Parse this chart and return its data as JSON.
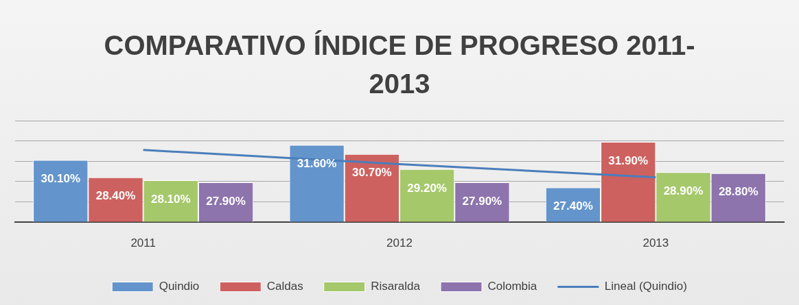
{
  "chart_data": {
    "type": "bar",
    "title": "COMPARATIVO ÍNDICE DE PROGRESO 2011-2013",
    "categories": [
      "2011",
      "2012",
      "2013"
    ],
    "series": [
      {
        "name": "Quindio",
        "color": "#6494cc",
        "values": [
          30.1,
          31.6,
          27.4
        ],
        "value_labels": [
          "30.10%",
          "31.60%",
          "27.40%"
        ]
      },
      {
        "name": "Caldas",
        "color": "#cd615f",
        "values": [
          28.4,
          30.7,
          31.9
        ],
        "value_labels": [
          "28.40%",
          "30.70%",
          "31.90%"
        ]
      },
      {
        "name": "Risaralda",
        "color": "#a5c86b",
        "values": [
          28.1,
          29.2,
          28.9
        ],
        "value_labels": [
          "28.10%",
          "29.20%",
          "28.90%"
        ]
      },
      {
        "name": "Colombia",
        "color": "#8d74ad",
        "values": [
          27.9,
          27.9,
          28.8
        ],
        "value_labels": [
          "27.90%",
          "27.90%",
          "28.80%"
        ]
      },
      {
        "name": "Lineal (Quindio)",
        "type": "line",
        "color": "#4a7ebb",
        "values": [
          31.1,
          29.7,
          28.4
        ]
      }
    ],
    "ylim": [
      24,
      34
    ],
    "yticks": [
      {
        "value": 24,
        "label": null
      },
      {
        "value": 26,
        "label": null
      },
      {
        "value": 28,
        "label": null
      },
      {
        "value": 30,
        "label": null
      },
      {
        "value": 32,
        "label": null
      },
      {
        "value": 34,
        "label": null
      }
    ],
    "tick_labels": "x",
    "grid": "y",
    "legend": "bottom"
  }
}
